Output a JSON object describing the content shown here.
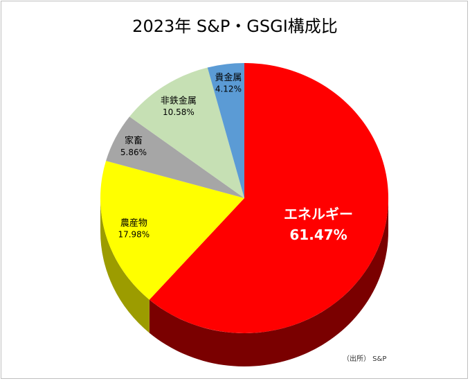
{
  "chart_data": {
    "type": "pie",
    "title": "2023年 S&P・GSGI構成比",
    "categories": [
      "エネルギー",
      "農産物",
      "家畜",
      "非鉄金属",
      "貴金属"
    ],
    "values": [
      61.47,
      17.98,
      5.86,
      10.58,
      4.12
    ],
    "labels": [
      "61.47%",
      "17.98%",
      "5.86%",
      "10.58%",
      "4.12%"
    ],
    "colors": [
      "#ff0000",
      "#ffff00",
      "#a6a6a6",
      "#c6e0b4",
      "#5b9bd5"
    ],
    "side_colors": [
      "#7a0000",
      "#9c9c00",
      "#5a5a5a",
      "#7a8f6c",
      "#2e5f8a"
    ],
    "label_colors": [
      "#ffffff",
      "#000000",
      "#000000",
      "#000000",
      "#000000"
    ],
    "style": "3d-pie",
    "legend": "none"
  },
  "source_note": "（出所） S&P"
}
